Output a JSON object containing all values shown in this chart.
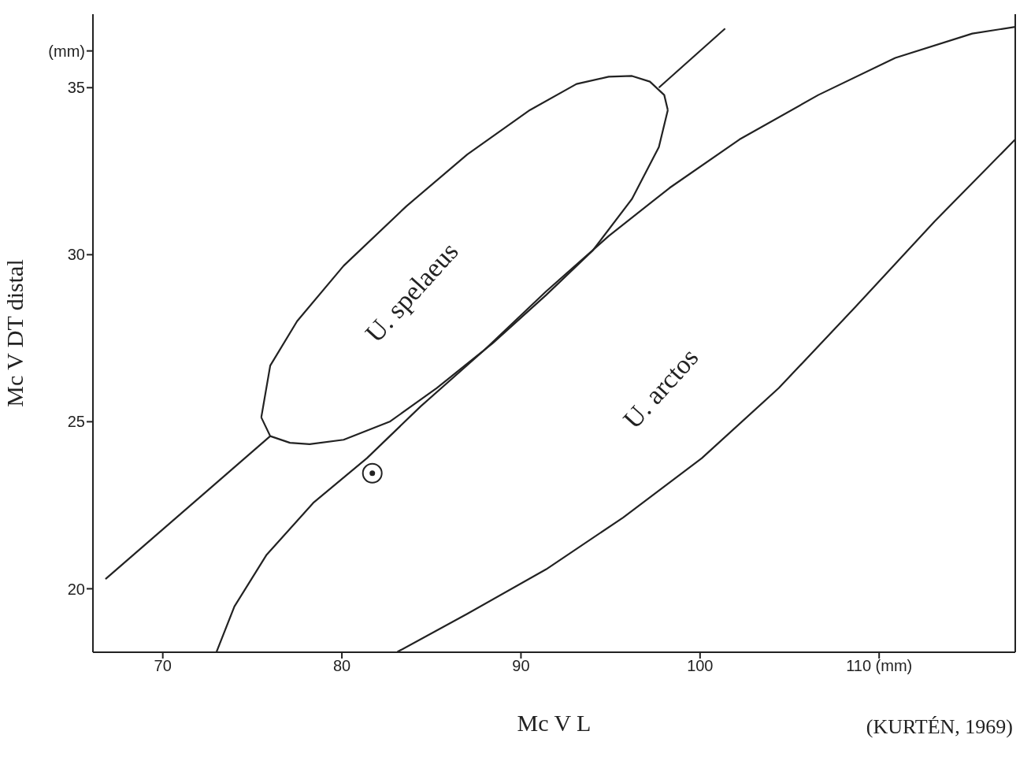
{
  "chart_data": {
    "type": "line",
    "xlabel": "Mc V  L",
    "ylabel": "Mc V  DT distal",
    "xlim": [
      66.1,
      117.6
    ],
    "ylim": [
      18.1,
      37.2
    ],
    "xticks": [
      70,
      80,
      90,
      100,
      {
        "value": 110,
        "label": "110 (mm)"
      }
    ],
    "yticks": [
      20,
      25,
      30,
      35,
      {
        "value": 36.1,
        "label": "(mm)"
      }
    ],
    "grid": false,
    "legend": false,
    "line_style": "solid",
    "annotations": [
      "(KURTÉN, 1969)"
    ],
    "series": [
      {
        "type": "line",
        "color": "#222222",
        "x": [
          66.8,
          76.0
        ],
        "values": [
          20.29,
          24.57
        ]
      },
      {
        "type": "line",
        "color": "#222222",
        "x": [
          97.7,
          101.4
        ],
        "values": [
          35.0,
          36.77
        ]
      },
      {
        "type": "line",
        "name": "U. spelaeus",
        "color": "#222222",
        "x": [
          75.5,
          76.0,
          77.1,
          78.2,
          80.1,
          82.7,
          85.3,
          88.4,
          91.4,
          94.0,
          96.2,
          97.7,
          98.2
        ],
        "values": [
          25.13,
          24.57,
          24.37,
          24.33,
          24.46,
          25.01,
          26.01,
          27.34,
          28.79,
          30.12,
          31.67,
          33.22,
          34.33
        ]
      },
      {
        "color": "#222222",
        "x": [
          98.2,
          98.0,
          97.2,
          96.2,
          94.9,
          93.1,
          90.5,
          87.0,
          83.6,
          80.1,
          77.5,
          76.0,
          75.5
        ],
        "values": [
          34.33,
          34.78,
          35.18,
          35.35,
          35.33,
          35.11,
          34.33,
          33.0,
          31.45,
          29.67,
          28.01,
          26.68,
          25.13
        ]
      },
      {
        "color": "#222222",
        "x": [
          73.0,
          74.0,
          75.8,
          78.4,
          81.4,
          84.4,
          87.9,
          91.4,
          94.9,
          98.3,
          102.2,
          106.6,
          110.9,
          115.2,
          117.6
        ],
        "values": [
          18.11,
          19.47,
          21.02,
          22.57,
          23.91,
          25.46,
          27.12,
          28.9,
          30.56,
          32.0,
          33.45,
          34.78,
          35.89,
          36.62,
          36.82
        ]
      },
      {
        "name": "U. arctos",
        "color": "#222222",
        "x": [
          83.1,
          87.0,
          91.4,
          95.7,
          100.1,
          104.4,
          108.7,
          113.1,
          117.6
        ],
        "values": [
          18.11,
          19.25,
          20.58,
          22.13,
          23.91,
          26.01,
          28.45,
          31.0,
          33.45
        ]
      },
      {
        "type": "scatter",
        "color": "#222222",
        "marker": "circle",
        "x": [
          81.7
        ],
        "values": [
          23.46
        ]
      }
    ]
  }
}
